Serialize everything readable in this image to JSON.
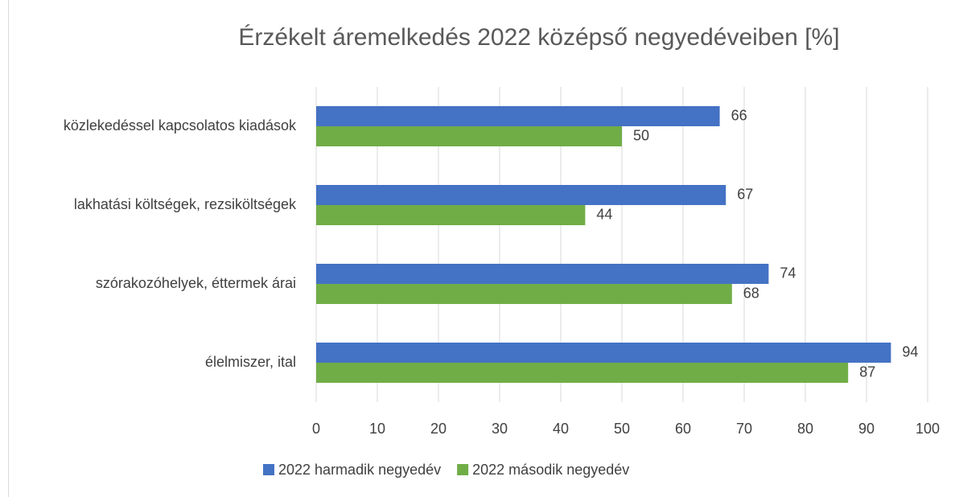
{
  "chart_data": {
    "type": "hbar",
    "title": "Érzékelt áremelkedés 2022 középső negyedéveiben [%]",
    "categories": [
      "közlekedéssel kapcsolatos kiadások",
      "lakhatási költségek, rezsiköltségek",
      "szórakozóhelyek, éttermek árai",
      "élelmiszer, ital"
    ],
    "series": [
      {
        "name": "2022 harmadik negyedév",
        "color": "#4472c4",
        "values": [
          66,
          67,
          74,
          94
        ]
      },
      {
        "name": "2022 második negyedév",
        "color": "#70ad47",
        "values": [
          50,
          44,
          68,
          87
        ]
      }
    ],
    "xlim": [
      0,
      100
    ],
    "xticks": [
      0,
      10,
      20,
      30,
      40,
      50,
      60,
      70,
      80,
      90,
      100
    ],
    "grid": true,
    "legend": "bottom"
  }
}
